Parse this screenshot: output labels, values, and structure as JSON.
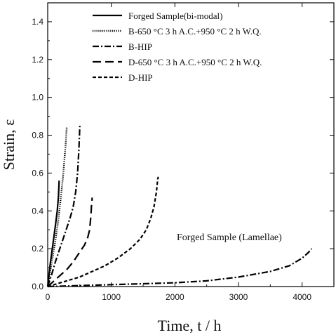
{
  "chart_data": {
    "type": "line",
    "xlabel": "Time, t / h",
    "ylabel": "Strain, ε",
    "xlim": [
      0,
      4500
    ],
    "ylim": [
      0,
      1.5
    ],
    "x_ticks": [
      0,
      1000,
      2000,
      3000,
      4000
    ],
    "y_ticks": [
      0.0,
      0.2,
      0.4,
      0.6,
      0.8,
      1.0,
      1.2,
      1.4
    ],
    "grid": false,
    "legend_position": "top-right",
    "annotation": "Forged Sample (Lamellae)",
    "series": [
      {
        "name": "Forged Sample(bi-modal)",
        "style": "solid",
        "points": [
          [
            0,
            0
          ],
          [
            40,
            0.12
          ],
          [
            80,
            0.22
          ],
          [
            120,
            0.32
          ],
          [
            150,
            0.4
          ],
          [
            170,
            0.48
          ],
          [
            180,
            0.56
          ]
        ]
      },
      {
        "name": "B-650 °C 3 h A.C.+950 °C 2 h W.Q.",
        "style": "dotted",
        "points": [
          [
            0,
            0
          ],
          [
            60,
            0.12
          ],
          [
            120,
            0.24
          ],
          [
            170,
            0.36
          ],
          [
            210,
            0.48
          ],
          [
            240,
            0.58
          ],
          [
            265,
            0.68
          ],
          [
            285,
            0.76
          ],
          [
            295,
            0.82
          ],
          [
            300,
            0.84
          ]
        ]
      },
      {
        "name": "B-HIP",
        "style": "dashdot",
        "points": [
          [
            0,
            0
          ],
          [
            60,
            0.06
          ],
          [
            120,
            0.13
          ],
          [
            180,
            0.19
          ],
          [
            240,
            0.25
          ],
          [
            300,
            0.31
          ],
          [
            350,
            0.36
          ],
          [
            400,
            0.42
          ],
          [
            440,
            0.5
          ],
          [
            470,
            0.6
          ],
          [
            490,
            0.72
          ],
          [
            500,
            0.8
          ],
          [
            505,
            0.85
          ]
        ]
      },
      {
        "name": "D-650 °C 3 h A.C.+950 °C 2 h W.Q.",
        "style": "longdash",
        "points": [
          [
            0,
            0
          ],
          [
            100,
            0.03
          ],
          [
            200,
            0.06
          ],
          [
            300,
            0.09
          ],
          [
            400,
            0.13
          ],
          [
            500,
            0.18
          ],
          [
            580,
            0.22
          ],
          [
            630,
            0.26
          ],
          [
            660,
            0.3
          ],
          [
            680,
            0.38
          ],
          [
            690,
            0.44
          ],
          [
            700,
            0.47
          ]
        ]
      },
      {
        "name": "D-HIP",
        "style": "shortdash",
        "points": [
          [
            0,
            0
          ],
          [
            100,
            0.01
          ],
          [
            200,
            0.02
          ],
          [
            300,
            0.03
          ],
          [
            500,
            0.05
          ],
          [
            700,
            0.08
          ],
          [
            900,
            0.11
          ],
          [
            1100,
            0.15
          ],
          [
            1300,
            0.2
          ],
          [
            1450,
            0.25
          ],
          [
            1550,
            0.3
          ],
          [
            1620,
            0.36
          ],
          [
            1670,
            0.42
          ],
          [
            1710,
            0.5
          ],
          [
            1730,
            0.57
          ],
          [
            1740,
            0.58
          ]
        ]
      },
      {
        "name": "Forged Sample (Lamellae)",
        "style": "dashdot",
        "points": [
          [
            0,
            0
          ],
          [
            200,
            0.002
          ],
          [
            500,
            0.005
          ],
          [
            1000,
            0.01
          ],
          [
            1500,
            0.015
          ],
          [
            2000,
            0.02
          ],
          [
            2500,
            0.03
          ],
          [
            3000,
            0.05
          ],
          [
            3500,
            0.08
          ],
          [
            3800,
            0.11
          ],
          [
            4000,
            0.15
          ],
          [
            4100,
            0.18
          ],
          [
            4150,
            0.2
          ]
        ]
      }
    ]
  }
}
